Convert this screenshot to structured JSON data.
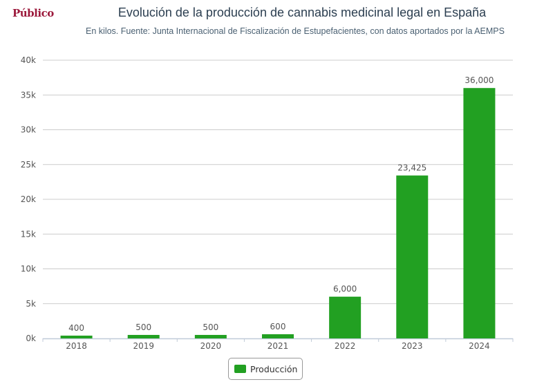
{
  "logo": "Público",
  "chart_data": {
    "type": "bar",
    "title": "Evolución de la producción de cannabis medicinal legal en España",
    "subtitle": "En kilos. Fuente: Junta Internacional de Fiscalización de Estupefacientes, con datos aportados por la AEMPS",
    "categories": [
      "2018",
      "2019",
      "2020",
      "2021",
      "2022",
      "2023",
      "2024"
    ],
    "series": [
      {
        "name": "Producción",
        "values": [
          400,
          500,
          500,
          600,
          6000,
          23425,
          36000
        ],
        "color": "#22a022"
      }
    ],
    "data_labels": [
      "400",
      "500",
      "500",
      "600",
      "6,000",
      "23,425",
      "36,000"
    ],
    "yticks": [
      0,
      5000,
      10000,
      15000,
      20000,
      25000,
      30000,
      35000,
      40000
    ],
    "ytick_labels": [
      "0k",
      "5k",
      "10k",
      "15k",
      "20k",
      "25k",
      "30k",
      "35k",
      "40k"
    ],
    "ylim": [
      0,
      40000
    ],
    "xlabel": "",
    "ylabel": "",
    "grid": true,
    "legend": "bottom-center"
  }
}
